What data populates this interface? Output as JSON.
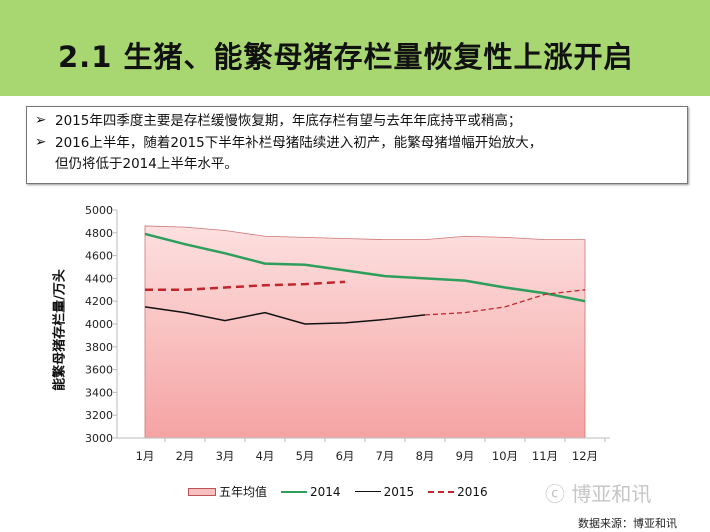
{
  "slide": {
    "title": "2.1 生猪、能繁母猪存栏量恢复性上涨开启",
    "bullets": [
      "2015年四季度主要是存栏缓慢恢复期，年底存栏有望与去年年底持平或稍高；",
      "2016上半年，随着2015下半年补栏母猪陆续进入初产，能繁母猪增幅开始放大，",
      "但仍将低于2014上半年水平。"
    ],
    "bullet_icon": "arrow-bullet-icon",
    "watermark": "博亚和讯",
    "source": "数据来源：博亚和讯",
    "header_color": "#a8d772"
  },
  "chart_data": {
    "type": "line",
    "title": "",
    "xlabel": "",
    "ylabel": "能繁母猪存栏量/万头",
    "ylim": [
      3000,
      5000
    ],
    "yticks": [
      "5000",
      "4800",
      "4600",
      "4400",
      "4200",
      "4000",
      "3800",
      "3600",
      "3400",
      "3200",
      "3000"
    ],
    "categories": [
      "1月",
      "2月",
      "3月",
      "4月",
      "5月",
      "6月",
      "7月",
      "8月",
      "9月",
      "10月",
      "11月",
      "12月"
    ],
    "legend_position": "bottom",
    "series": [
      {
        "name": "五年均值",
        "style": "area",
        "color": "#f4a3a3",
        "values": [
          4860,
          4850,
          4820,
          4770,
          4760,
          4750,
          4740,
          4740,
          4770,
          4760,
          4740,
          4740
        ]
      },
      {
        "name": "2014",
        "style": "solid",
        "color": "#2e9e5b",
        "values": [
          4790,
          4700,
          4620,
          4530,
          4520,
          4470,
          4420,
          4400,
          4380,
          4320,
          4270,
          4200
        ]
      },
      {
        "name": "2015",
        "style": "solid",
        "color": "#111111",
        "values": [
          4150,
          4100,
          4030,
          4100,
          4000,
          4010,
          4040,
          4080,
          null,
          null,
          null,
          null
        ],
        "forecast": [
          null,
          null,
          null,
          null,
          null,
          null,
          null,
          4080,
          4100,
          4150,
          4260,
          4300
        ]
      },
      {
        "name": "2016",
        "style": "dashed",
        "color": "#c0262c",
        "values": [
          4300,
          4300,
          4320,
          4340,
          4350,
          4370,
          null,
          null,
          null,
          null,
          null,
          null
        ]
      }
    ]
  }
}
